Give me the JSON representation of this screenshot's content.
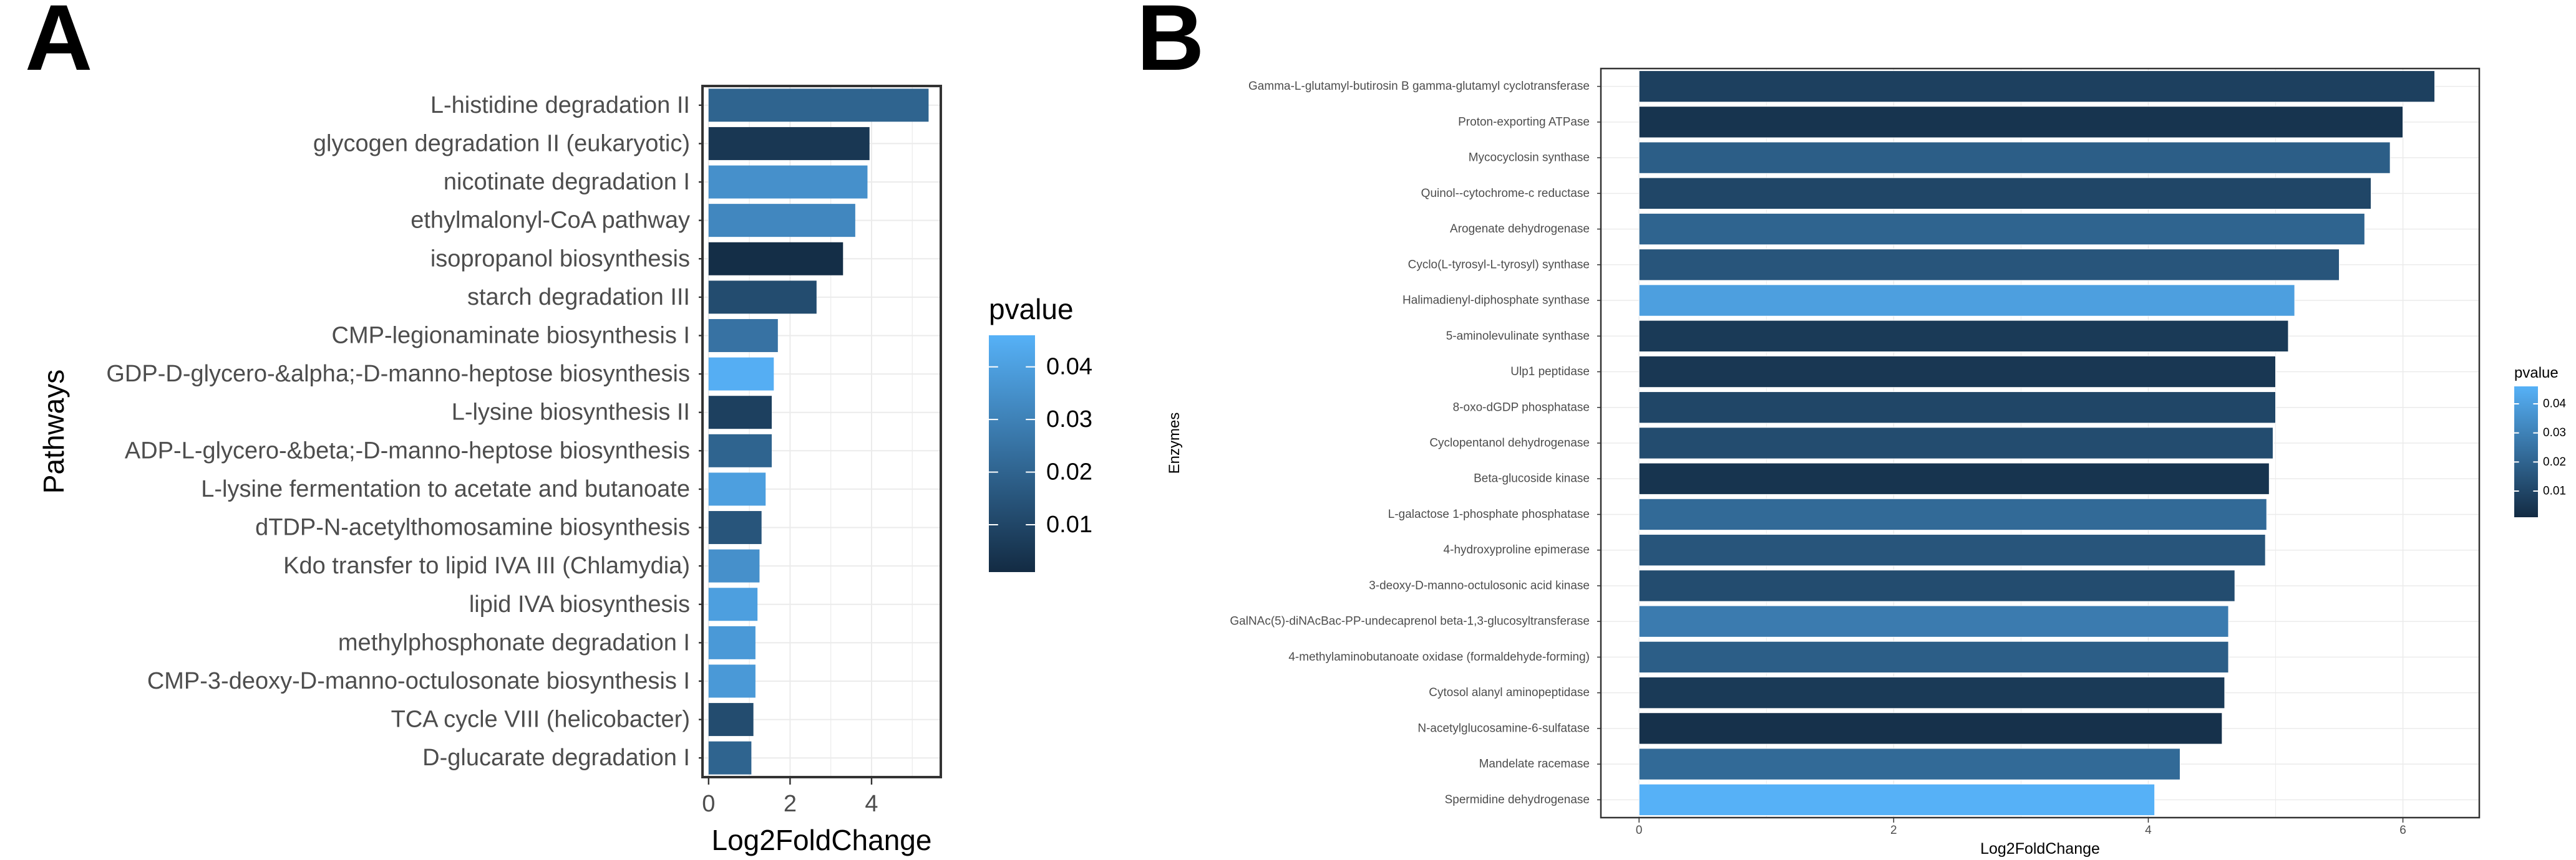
{
  "panels": [
    {
      "letter": "A"
    },
    {
      "letter": "B"
    }
  ],
  "chart_data": [
    {
      "type": "bar",
      "orientation": "horizontal",
      "xlabel": "Log2FoldChange",
      "ylabel": "Pathways",
      "xlim": [
        -0.15,
        5.7
      ],
      "xticks": [
        0,
        2,
        4
      ],
      "grid": true,
      "legend": {
        "title": "pvalue",
        "position": "right",
        "ticks": [
          0.01,
          0.02,
          0.03,
          0.04
        ],
        "range": [
          0.001,
          0.046
        ],
        "low_color": "#132B43",
        "high_color": "#56B1F7"
      },
      "categories": [
        "L-histidine degradation II",
        "glycogen degradation II (eukaryotic)",
        "nicotinate degradation I",
        "ethylmalonyl-CoA pathway",
        "isopropanol biosynthesis",
        "starch degradation III",
        "CMP-legionaminate biosynthesis I",
        "GDP-D-glycero-&alpha;-D-manno-heptose biosynthesis",
        "L-lysine biosynthesis II",
        "ADP-L-glycero-&beta;-D-manno-heptose biosynthesis",
        "L-lysine fermentation to acetate and butanoate",
        "dTDP-N-acetylthomosamine biosynthesis",
        "Kdo transfer to lipid IVA III (Chlamydia)",
        "lipid IVA biosynthesis",
        "methylphosphonate degradation I",
        "CMP-3-deoxy-D-manno-octulosonate biosynthesis I",
        "TCA cycle VIII (helicobacter)",
        "D-glucarate degradation I"
      ],
      "values": [
        5.4,
        3.95,
        3.9,
        3.6,
        3.3,
        2.65,
        1.7,
        1.6,
        1.55,
        1.55,
        1.4,
        1.3,
        1.25,
        1.2,
        1.15,
        1.15,
        1.1,
        1.05
      ],
      "pvalues": [
        0.02,
        0.005,
        0.035,
        0.032,
        0.002,
        0.012,
        0.025,
        0.045,
        0.008,
        0.02,
        0.04,
        0.015,
        0.035,
        0.04,
        0.038,
        0.038,
        0.012,
        0.02
      ]
    },
    {
      "type": "bar",
      "orientation": "horizontal",
      "xlabel": "Log2FoldChange",
      "ylabel": "Enzymes",
      "xlim": [
        -0.3,
        6.6
      ],
      "xticks": [
        0,
        2,
        4,
        6
      ],
      "grid": true,
      "legend": {
        "title": "pvalue",
        "position": "right",
        "ticks": [
          0.01,
          0.02,
          0.03,
          0.04
        ],
        "range": [
          0.001,
          0.046
        ],
        "low_color": "#132B43",
        "high_color": "#56B1F7"
      },
      "categories": [
        "Gamma-L-glutamyl-butirosin B gamma-glutamyl cyclotransferase",
        "Proton-exporting ATPase",
        "Mycocyclosin synthase",
        "Quinol--cytochrome-c reductase",
        "Arogenate dehydrogenase",
        "Cyclo(L-tyrosyl-L-tyrosyl) synthase",
        "Halimadienyl-diphosphate synthase",
        "5-aminolevulinate synthase",
        "Ulp1 peptidase",
        "8-oxo-dGDP phosphatase",
        "Cyclopentanol dehydrogenase",
        "Beta-glucoside kinase",
        "L-galactose 1-phosphate phosphatase",
        "4-hydroxyproline epimerase",
        "3-deoxy-D-manno-octulosonic acid kinase",
        "GalNAc(5)-diNAcBac-PP-undecaprenol beta-1,3-glucosyltransferase",
        "4-methylaminobutanoate oxidase (formaldehyde-forming)",
        "Cytosol alanyl aminopeptidase",
        "N-acetylglucosamine-6-sulfatase",
        "Mandelate racemase",
        "Spermidine dehydrogenase"
      ],
      "values": [
        6.25,
        6.0,
        5.9,
        5.75,
        5.7,
        5.5,
        5.15,
        5.1,
        5.0,
        5.0,
        4.98,
        4.95,
        4.93,
        4.92,
        4.68,
        4.63,
        4.63,
        4.6,
        4.58,
        4.25,
        4.05
      ],
      "pvalues": [
        0.008,
        0.004,
        0.018,
        0.01,
        0.02,
        0.015,
        0.04,
        0.006,
        0.005,
        0.01,
        0.012,
        0.004,
        0.022,
        0.015,
        0.012,
        0.028,
        0.018,
        0.006,
        0.003,
        0.022,
        0.046
      ]
    }
  ]
}
